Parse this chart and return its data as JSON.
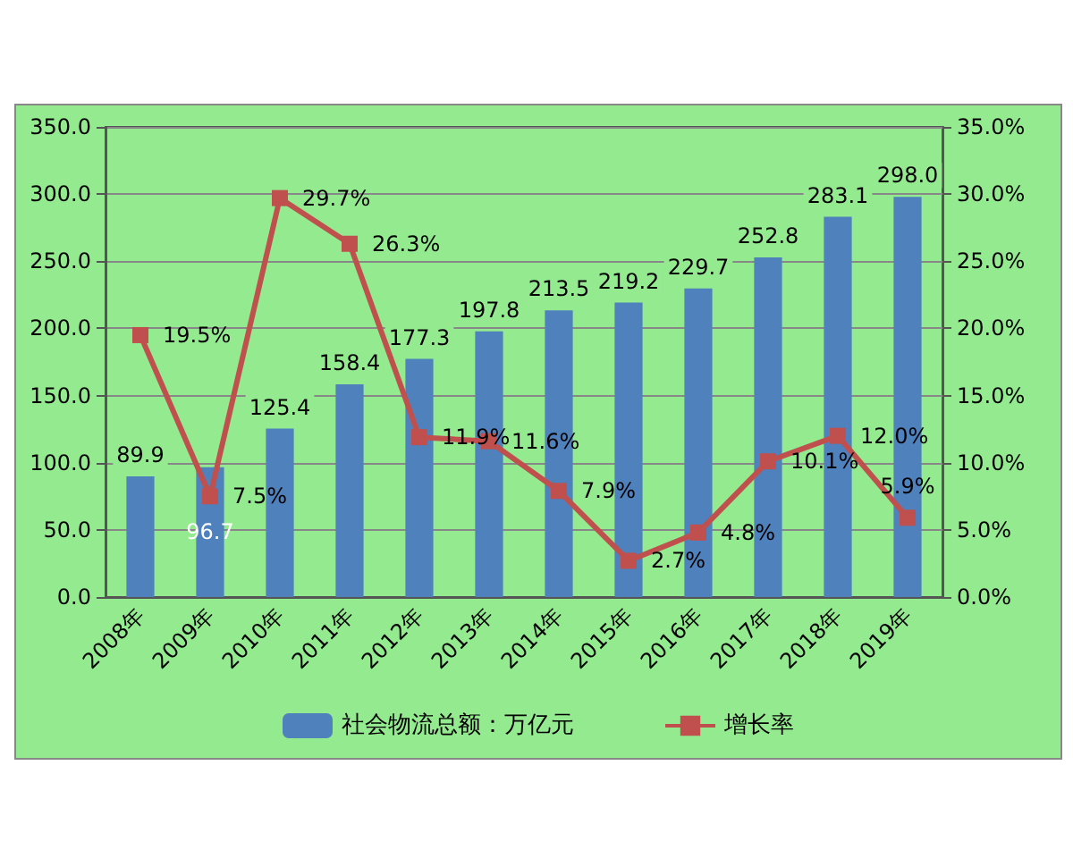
{
  "chart_data": {
    "type": "bar",
    "categories": [
      "2008年",
      "2009年",
      "2010年",
      "2011年",
      "2012年",
      "2013年",
      "2014年",
      "2015年",
      "2016年",
      "2017年",
      "2018年",
      "2019年"
    ],
    "series": [
      {
        "name": "社会物流总额：万亿元",
        "type": "bar",
        "color": "#4f81bd",
        "values": [
          89.9,
          96.7,
          125.4,
          158.4,
          177.3,
          197.8,
          213.5,
          219.2,
          229.7,
          252.8,
          283.1,
          298.0
        ],
        "value_labels": [
          "89.9",
          "96.7",
          "125.4",
          "158.4",
          "177.3",
          "197.8",
          "213.5",
          "219.2",
          "229.7",
          "252.8",
          "283.1",
          "298.0"
        ]
      },
      {
        "name": "增长率",
        "type": "line",
        "axis": "y2",
        "color": "#c0504d",
        "marker": "square",
        "values": [
          19.5,
          7.5,
          29.7,
          26.3,
          11.9,
          11.6,
          7.9,
          2.7,
          4.8,
          10.1,
          12.0,
          5.9
        ],
        "value_labels": [
          "19.5%",
          "7.5%",
          "29.7%",
          "26.3%",
          "11.9%",
          "11.6%",
          "7.9%",
          "2.7%",
          "4.8%",
          "10.1%",
          "12.0%",
          "5.9%"
        ]
      }
    ],
    "ylim": [
      0,
      350
    ],
    "yticks": [
      {
        "value": 0,
        "label": "0.0"
      },
      {
        "value": 50,
        "label": "50.0"
      },
      {
        "value": 100,
        "label": "100.0"
      },
      {
        "value": 150,
        "label": "150.0"
      },
      {
        "value": 200,
        "label": "200.0"
      },
      {
        "value": 250,
        "label": "250.0"
      },
      {
        "value": 300,
        "label": "300.0"
      },
      {
        "value": 350,
        "label": "350.0"
      }
    ],
    "y2lim": [
      0,
      35
    ],
    "y2ticks": [
      {
        "value": 0,
        "label": "0.0%"
      },
      {
        "value": 5,
        "label": "5.0%"
      },
      {
        "value": 10,
        "label": "10.0%"
      },
      {
        "value": 15,
        "label": "15.0%"
      },
      {
        "value": 20,
        "label": "20.0%"
      },
      {
        "value": 25,
        "label": "25.0%"
      },
      {
        "value": 30,
        "label": "30.0%"
      },
      {
        "value": 35,
        "label": "35.0%"
      }
    ],
    "grid": "y",
    "legend": "bottom"
  }
}
